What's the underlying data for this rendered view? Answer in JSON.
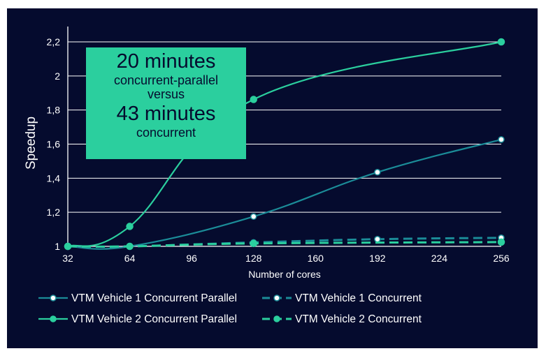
{
  "chart_data": {
    "type": "line",
    "xlabel": "Number of cores",
    "ylabel": "Speedup",
    "xlim": [
      32,
      256
    ],
    "ylim": [
      1,
      2.2
    ],
    "x_ticks": [
      "32",
      "64",
      "96",
      "128",
      "160",
      "192",
      "224",
      "256"
    ],
    "y_ticks": [
      "1",
      "1,2",
      "1,4",
      "1,6",
      "1,8",
      "2",
      "2,2"
    ],
    "grid": "horizontal",
    "legend_position": "bottom",
    "series": [
      {
        "name": "VTM Vehicle 1 Concurrent Parallel",
        "color": "#1b8c98",
        "dashed": false,
        "marker": "white-dot",
        "x": [
          32,
          64,
          128,
          192,
          256
        ],
        "values": [
          1.0,
          1.0,
          1.175,
          1.435,
          1.627
        ]
      },
      {
        "name": "VTM Vehicle 1 Concurrent",
        "color": "#1b8c98",
        "dashed": true,
        "marker": "white-dot",
        "x": [
          32,
          64,
          128,
          192,
          256
        ],
        "values": [
          1.0,
          1.0,
          1.023,
          1.042,
          1.05
        ]
      },
      {
        "name": "VTM Vehicle 2 Concurrent Parallel",
        "color": "#2bcf9e",
        "dashed": false,
        "marker": "teal-dot",
        "x": [
          32,
          64,
          128,
          256
        ],
        "values": [
          1.0,
          1.117,
          1.862,
          2.2
        ]
      },
      {
        "name": "VTM Vehicle 2 Concurrent",
        "color": "#2bcf9e",
        "dashed": true,
        "marker": "teal-dot",
        "x": [
          32,
          64,
          128,
          256
        ],
        "values": [
          1.0,
          1.0,
          1.017,
          1.025
        ]
      }
    ]
  },
  "callout": {
    "line1": "20 minutes",
    "line2": "concurrent-parallel",
    "line3": "versus",
    "line4": "43 minutes",
    "line5": "concurrent"
  }
}
